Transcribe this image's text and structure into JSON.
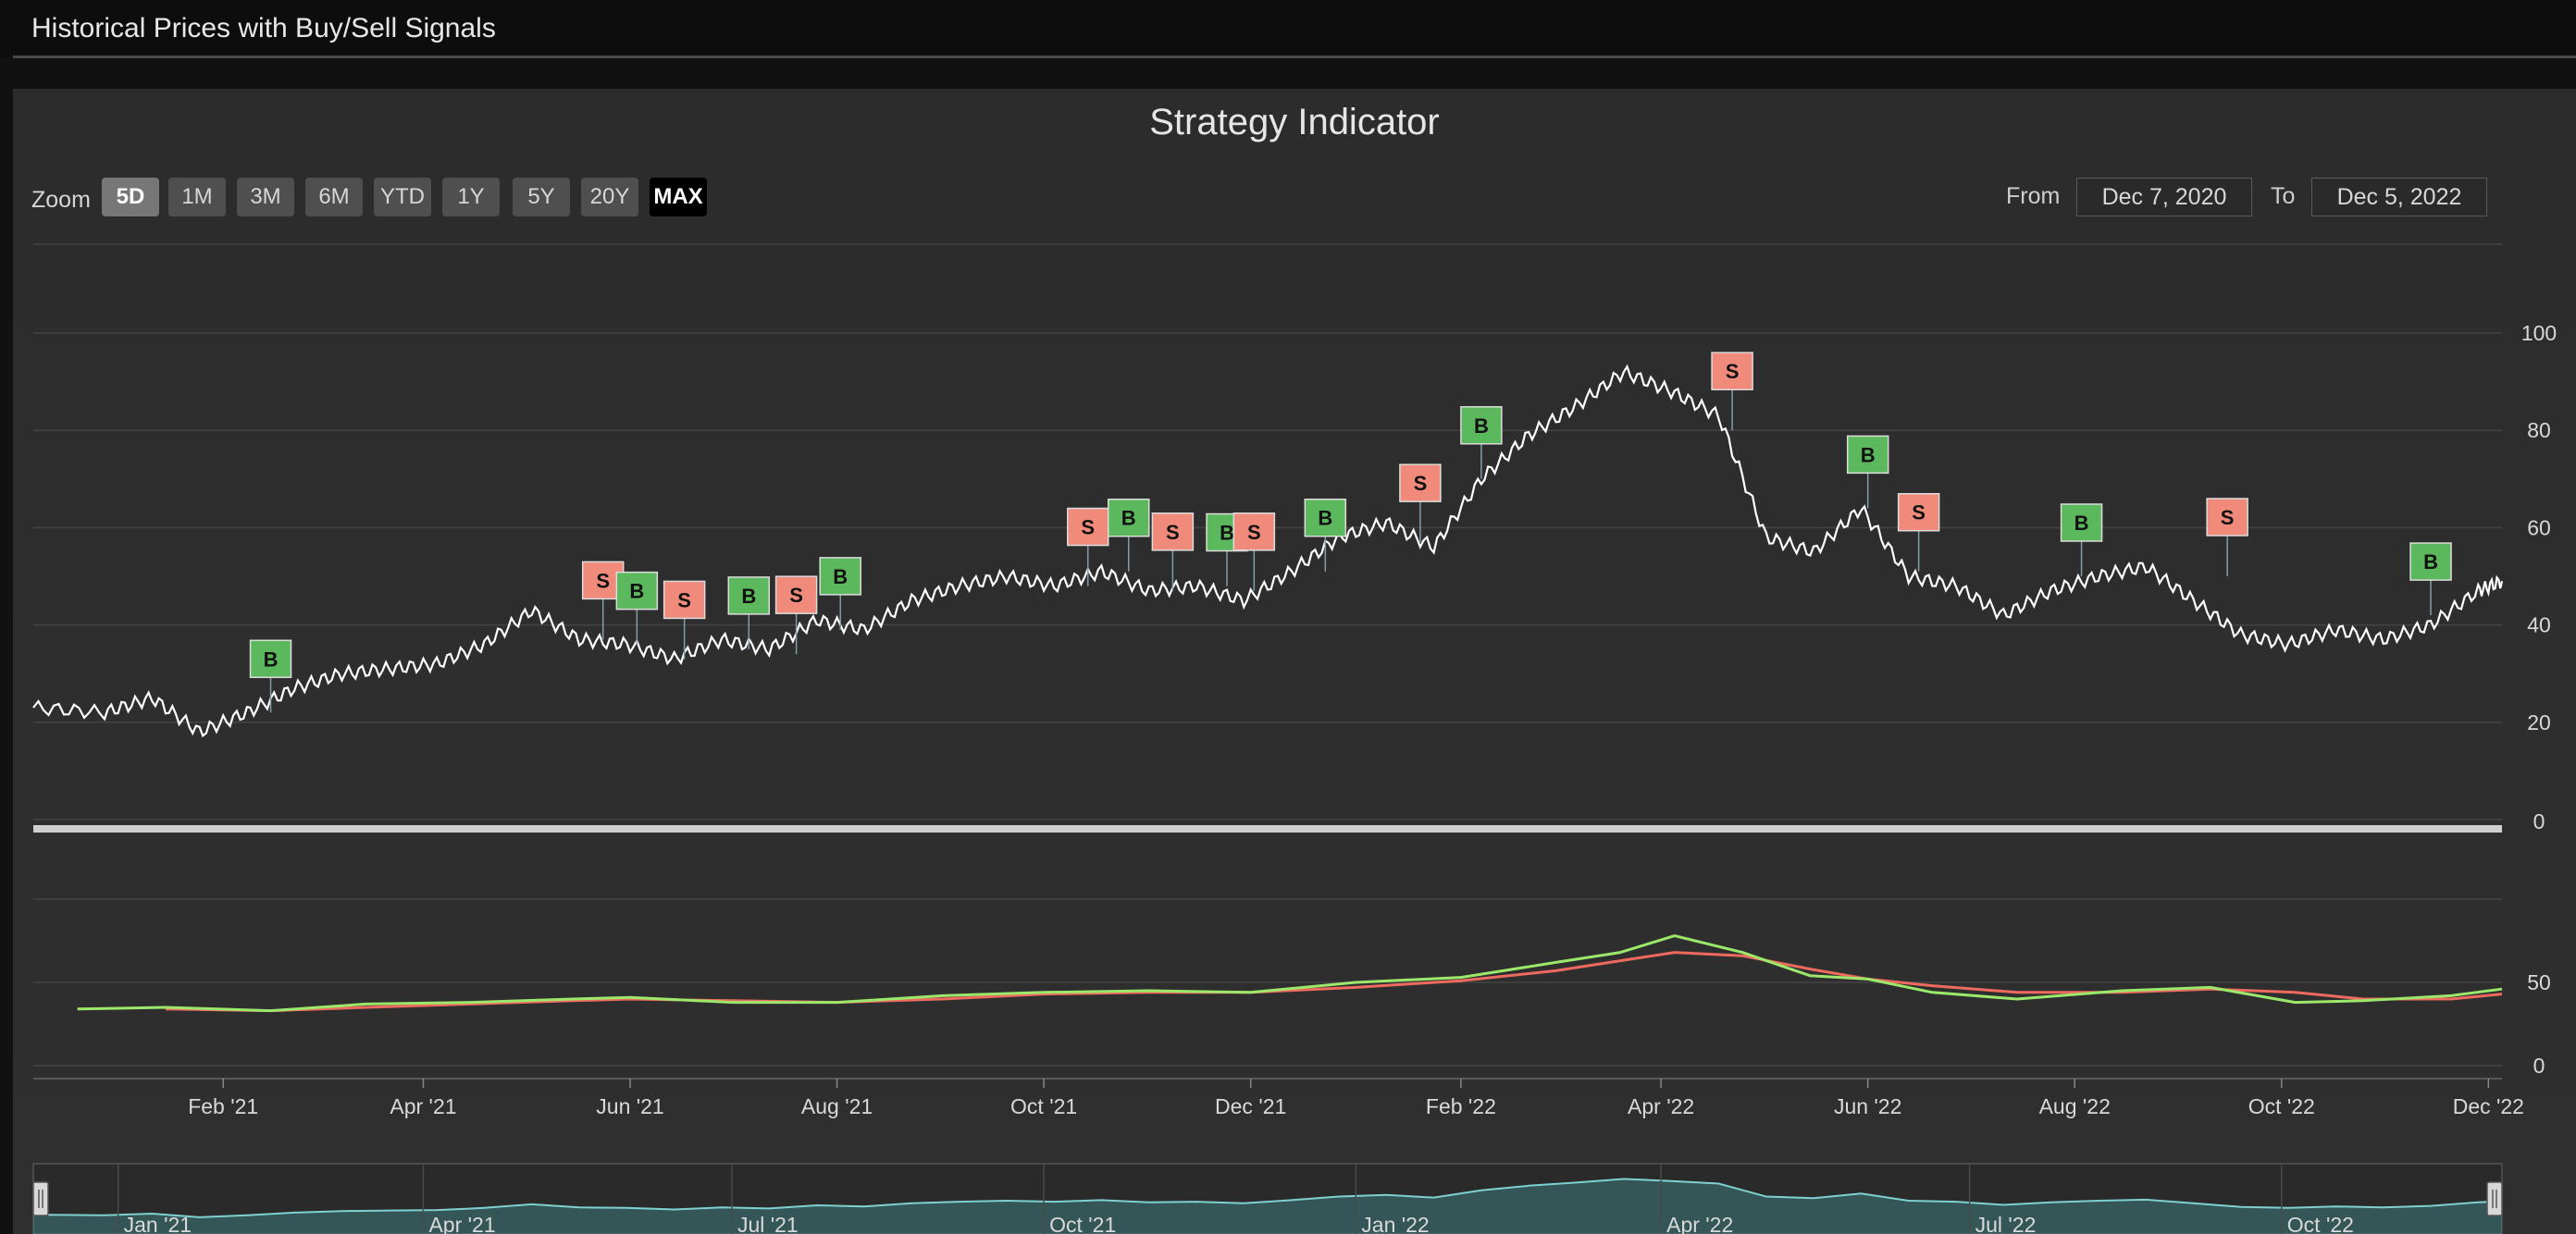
{
  "page": {
    "header_title": "Historical Prices with Buy/Sell Signals"
  },
  "chart": {
    "title": "Strategy Indicator",
    "zoom_label": "Zoom",
    "zoom_buttons": [
      {
        "label": "5D",
        "state": "selected"
      },
      {
        "label": "1M",
        "state": "normal"
      },
      {
        "label": "3M",
        "state": "normal"
      },
      {
        "label": "6M",
        "state": "normal"
      },
      {
        "label": "YTD",
        "state": "normal"
      },
      {
        "label": "1Y",
        "state": "normal"
      },
      {
        "label": "5Y",
        "state": "normal"
      },
      {
        "label": "20Y",
        "state": "normal"
      },
      {
        "label": "MAX",
        "state": "active"
      }
    ],
    "from_label": "From",
    "from_value": "Dec 7, 2020",
    "to_label": "To",
    "to_value": "Dec 5, 2022"
  },
  "colors": {
    "background": "#2e2e2e",
    "price_line": "#ffffff",
    "buy_flag": "#5cb85c",
    "sell_flag": "#f08a7a",
    "indicator_fast": "#9be86b",
    "indicator_slow": "#ef6a5e",
    "navigator_fill": "#4aa8a8"
  },
  "chart_data": {
    "type": "line",
    "price_series": {
      "x": [
        "2020-12-07",
        "2020-12-28",
        "2021-01-11",
        "2021-01-25",
        "2021-02-08",
        "2021-02-22",
        "2021-03-08",
        "2021-03-22",
        "2021-04-05",
        "2021-04-19",
        "2021-05-03",
        "2021-05-17",
        "2021-05-31",
        "2021-06-14",
        "2021-06-28",
        "2021-07-12",
        "2021-07-26",
        "2021-08-09",
        "2021-08-23",
        "2021-09-06",
        "2021-09-20",
        "2021-10-04",
        "2021-10-18",
        "2021-11-01",
        "2021-11-15",
        "2021-11-29",
        "2021-12-13",
        "2021-12-27",
        "2022-01-10",
        "2022-01-24",
        "2022-02-07",
        "2022-02-21",
        "2022-03-07",
        "2022-03-21",
        "2022-04-04",
        "2022-04-18",
        "2022-05-02",
        "2022-05-16",
        "2022-05-30",
        "2022-06-13",
        "2022-06-27",
        "2022-07-11",
        "2022-07-25",
        "2022-08-08",
        "2022-08-22",
        "2022-09-05",
        "2022-09-19",
        "2022-10-03",
        "2022-10-17",
        "2022-10-31",
        "2022-11-14",
        "2022-11-28",
        "2022-12-05"
      ],
      "y": [
        23,
        22,
        25,
        18,
        22,
        27,
        30,
        31,
        32,
        36,
        43,
        37,
        36,
        33,
        37,
        35,
        41,
        39,
        45,
        48,
        50,
        48,
        51,
        47,
        48,
        45,
        51,
        58,
        61,
        56,
        70,
        79,
        85,
        92,
        88,
        83,
        58,
        55,
        64,
        50,
        48,
        42,
        47,
        50,
        52,
        45,
        38,
        36,
        39,
        37,
        40,
        47,
        49
      ]
    },
    "signals": [
      {
        "type": "B",
        "x": "2021-02-15",
        "y": 22
      },
      {
        "type": "S",
        "x": "2021-05-24",
        "y": 37
      },
      {
        "type": "B",
        "x": "2021-06-03",
        "y": 36
      },
      {
        "type": "S",
        "x": "2021-06-17",
        "y": 33
      },
      {
        "type": "B",
        "x": "2021-07-06",
        "y": 35
      },
      {
        "type": "S",
        "x": "2021-07-20",
        "y": 34
      },
      {
        "type": "B",
        "x": "2021-08-02",
        "y": 39
      },
      {
        "type": "S",
        "x": "2021-10-14",
        "y": 48
      },
      {
        "type": "B",
        "x": "2021-10-26",
        "y": 51
      },
      {
        "type": "S",
        "x": "2021-11-08",
        "y": 47
      },
      {
        "type": "B",
        "x": "2021-11-24",
        "y": 48
      },
      {
        "type": "S",
        "x": "2021-12-02",
        "y": 47
      },
      {
        "type": "B",
        "x": "2021-12-23",
        "y": 51
      },
      {
        "type": "S",
        "x": "2022-01-20",
        "y": 57
      },
      {
        "type": "B",
        "x": "2022-02-07",
        "y": 70
      },
      {
        "type": "S",
        "x": "2022-04-22",
        "y": 80
      },
      {
        "type": "B",
        "x": "2022-06-01",
        "y": 64
      },
      {
        "type": "S",
        "x": "2022-06-16",
        "y": 51
      },
      {
        "type": "B",
        "x": "2022-08-03",
        "y": 50
      },
      {
        "type": "S",
        "x": "2022-09-15",
        "y": 50
      },
      {
        "type": "B",
        "x": "2022-11-14",
        "y": 42
      }
    ],
    "indicator": {
      "fast": {
        "x": [
          "2020-12-20",
          "2021-01-15",
          "2021-02-15",
          "2021-03-15",
          "2021-04-15",
          "2021-05-15",
          "2021-06-01",
          "2021-07-01",
          "2021-08-01",
          "2021-09-01",
          "2021-10-01",
          "2021-11-01",
          "2021-12-01",
          "2022-01-01",
          "2022-02-01",
          "2022-03-01",
          "2022-03-20",
          "2022-04-05",
          "2022-04-25",
          "2022-05-15",
          "2022-06-01",
          "2022-06-20",
          "2022-07-15",
          "2022-08-15",
          "2022-09-10",
          "2022-10-05",
          "2022-10-25",
          "2022-11-20",
          "2022-12-05"
        ],
        "y": [
          34,
          35,
          33,
          37,
          38,
          40,
          41,
          38,
          38,
          42,
          44,
          45,
          44,
          50,
          53,
          62,
          68,
          78,
          68,
          54,
          52,
          44,
          40,
          45,
          47,
          38,
          39,
          42,
          46
        ]
      },
      "slow": {
        "x": [
          "2021-01-15",
          "2021-02-15",
          "2021-03-15",
          "2021-04-15",
          "2021-05-15",
          "2021-06-01",
          "2021-07-01",
          "2021-08-01",
          "2021-09-01",
          "2021-10-01",
          "2021-11-01",
          "2021-12-01",
          "2022-01-01",
          "2022-02-01",
          "2022-03-01",
          "2022-03-20",
          "2022-04-05",
          "2022-04-25",
          "2022-05-15",
          "2022-06-01",
          "2022-06-20",
          "2022-07-15",
          "2022-08-15",
          "2022-09-10",
          "2022-10-05",
          "2022-10-25",
          "2022-11-20",
          "2022-12-05"
        ],
        "y": [
          34,
          33,
          35,
          37,
          39,
          40,
          39,
          38,
          40,
          43,
          44,
          44,
          47,
          51,
          57,
          63,
          68,
          66,
          58,
          52,
          48,
          44,
          44,
          46,
          44,
          40,
          40,
          43
        ]
      }
    },
    "x_ticks": [
      "Feb '21",
      "Apr '21",
      "Jun '21",
      "Aug '21",
      "Oct '21",
      "Dec '21",
      "Feb '22",
      "Apr '22",
      "Jun '22",
      "Aug '22",
      "Oct '22",
      "Dec '22"
    ],
    "x_tick_dates": [
      "2021-02-01",
      "2021-04-01",
      "2021-06-01",
      "2021-08-01",
      "2021-10-01",
      "2021-12-01",
      "2022-02-01",
      "2022-04-01",
      "2022-06-01",
      "2022-08-01",
      "2022-10-01",
      "2022-12-01"
    ],
    "price_y_ticks": [
      "0",
      "20",
      "40",
      "60",
      "80",
      "100"
    ],
    "price_ylim": [
      0,
      110
    ],
    "indicator_y_ticks": [
      "0",
      "50"
    ],
    "indicator_ylim": [
      0,
      100
    ],
    "navigator_ticks": [
      "Jan '21",
      "Apr '21",
      "Jul '21",
      "Oct '21",
      "Jan '22",
      "Apr '22",
      "Jul '22",
      "Oct '22"
    ],
    "navigator_tick_dates": [
      "2021-01-01",
      "2021-04-01",
      "2021-07-01",
      "2021-10-01",
      "2022-01-01",
      "2022-04-01",
      "2022-07-01",
      "2022-10-01"
    ],
    "xlim": [
      "2020-12-07",
      "2022-12-05"
    ],
    "grid": true
  }
}
